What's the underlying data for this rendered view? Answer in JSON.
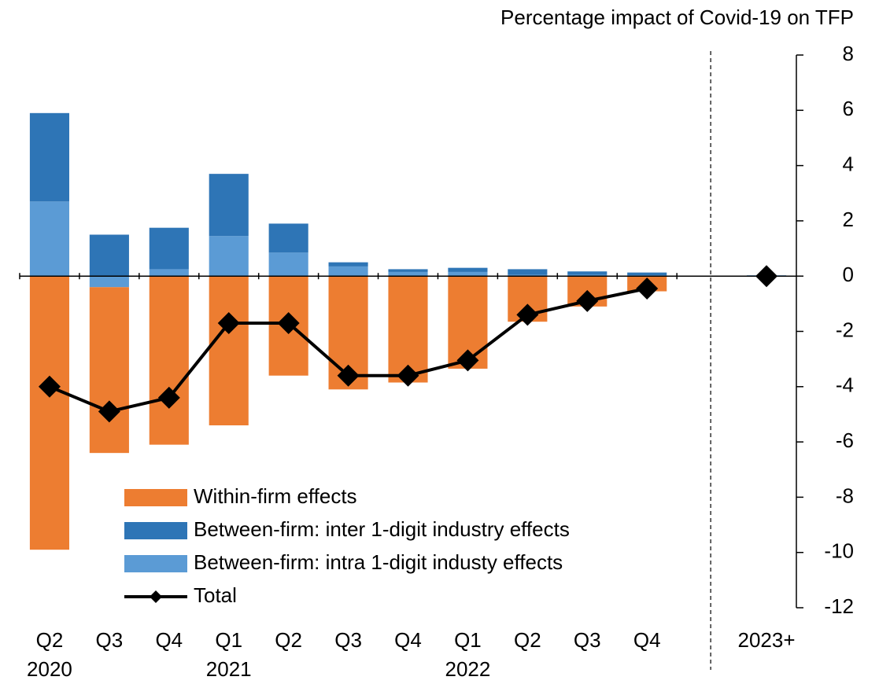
{
  "chart_data": {
    "type": "stacked-bar-line",
    "title": "Percentage impact of Covid-19 on TFP",
    "categories": [
      [
        "Q2",
        "2020"
      ],
      [
        "Q3"
      ],
      [
        "Q4"
      ],
      [
        "Q1",
        "2021"
      ],
      [
        "Q2"
      ],
      [
        "Q3"
      ],
      [
        "Q4"
      ],
      [
        "Q1",
        "2022"
      ],
      [
        "Q2"
      ],
      [
        "Q3"
      ],
      [
        "Q4"
      ],
      null,
      [
        "2023+"
      ]
    ],
    "series": [
      {
        "name": "Within-firm effects",
        "type": "bar",
        "color": "#ED7D31",
        "values": [
          -9.9,
          -6.0,
          -6.1,
          -5.4,
          -3.6,
          -4.1,
          -3.85,
          -3.35,
          -1.65,
          -1.1,
          -0.55,
          null,
          0
        ]
      },
      {
        "name": "Between-firm: inter 1-digit industry effects",
        "type": "bar",
        "color": "#2E75B6",
        "values": [
          3.2,
          1.5,
          1.5,
          2.25,
          1.05,
          0.15,
          0.1,
          0.15,
          0.2,
          0.12,
          0.1,
          null,
          0
        ]
      },
      {
        "name": "Between-firm: intra 1-digit industy effects",
        "type": "bar",
        "color": "#5B9BD5",
        "values": [
          2.7,
          -0.4,
          0.25,
          1.45,
          0.85,
          0.35,
          0.15,
          0.15,
          0.05,
          0.05,
          0.03,
          null,
          0.03
        ]
      },
      {
        "name": "Total",
        "type": "line",
        "color": "#000000",
        "values": [
          -4.0,
          -4.9,
          -4.4,
          -1.7,
          -1.7,
          -3.6,
          -3.6,
          -3.05,
          -1.4,
          -0.9,
          -0.45,
          null,
          0
        ]
      }
    ],
    "ylim": [
      -12,
      8
    ],
    "yticks": [
      -12,
      -10,
      -8,
      -6,
      -4,
      -2,
      0,
      2,
      4,
      6,
      8
    ]
  }
}
